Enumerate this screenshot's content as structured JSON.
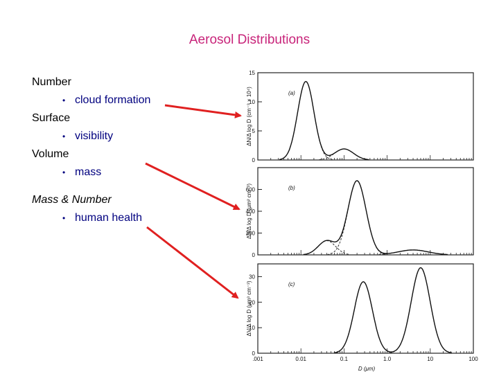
{
  "slide": {
    "title": "Aerosol Distributions",
    "bullet_char": "•",
    "items": [
      {
        "level": 1,
        "text": "Number"
      },
      {
        "level": 2,
        "text": "cloud formation"
      },
      {
        "level": 1,
        "text": "Surface"
      },
      {
        "level": 2,
        "text": "visibility"
      },
      {
        "level": 1,
        "text": "Volume"
      },
      {
        "level": 2,
        "text": "mass"
      },
      {
        "level": 1,
        "text": "Mass & Number",
        "style": "italic"
      },
      {
        "level": 2,
        "text": "human health"
      }
    ]
  },
  "colors": {
    "title": "#c8247a",
    "bullet_text": "#00007f",
    "arrow": "#e02020"
  },
  "chart_data": [
    {
      "type": "line",
      "panel_label": "(a)",
      "ylabel": "ΔN/Δ log D (cm⁻³ × 10⁴)",
      "x_scale": "log",
      "xlim": [
        0.001,
        100
      ],
      "ylim": [
        0,
        15
      ],
      "yticks": [
        0,
        5,
        10,
        15
      ],
      "series": [
        {
          "mode": "mode1",
          "gm": 0.013,
          "sigma_log": 0.19,
          "peak": 13.5,
          "dashed": false
        },
        {
          "mode": "mode2",
          "gm": 0.1,
          "sigma_log": 0.22,
          "peak": 1.9,
          "dashed": false
        }
      ],
      "total": true
    },
    {
      "type": "line",
      "panel_label": "(b)",
      "ylabel": "ΔS/Δ log D (μm² cm⁻³)",
      "x_scale": "log",
      "xlim": [
        0.001,
        100
      ],
      "ylim": [
        0,
        800
      ],
      "yticks": [
        0,
        200,
        400,
        600
      ],
      "series": [
        {
          "mode": "mode1",
          "gm": 0.04,
          "sigma_log": 0.2,
          "peak": 130,
          "dashed": false
        },
        {
          "mode": "mode2",
          "gm": 0.2,
          "sigma_log": 0.21,
          "peak": 680,
          "dashed": false
        },
        {
          "mode": "mode3",
          "gm": 4.0,
          "sigma_log": 0.35,
          "peak": 45,
          "dashed": false
        }
      ],
      "total": true
    },
    {
      "type": "line",
      "panel_label": "(c)",
      "ylabel": "ΔV/Δ log D (μm³ cm⁻³)",
      "xlabel": "D (μm)",
      "x_scale": "log",
      "xlim": [
        0.001,
        100
      ],
      "ylim": [
        0,
        35
      ],
      "yticks": [
        0,
        10,
        20,
        30
      ],
      "xticks": [
        0.001,
        0.01,
        0.1,
        1.0,
        10,
        100
      ],
      "xtick_labels": [
        ".001",
        "0.01",
        "0.1",
        "1.0",
        "10",
        "100"
      ],
      "series": [
        {
          "mode": "mode1",
          "gm": 0.28,
          "sigma_log": 0.21,
          "peak": 28,
          "dashed": false
        },
        {
          "mode": "mode2",
          "gm": 6.0,
          "sigma_log": 0.22,
          "peak": 33.5,
          "dashed": false
        }
      ],
      "total": true
    }
  ]
}
